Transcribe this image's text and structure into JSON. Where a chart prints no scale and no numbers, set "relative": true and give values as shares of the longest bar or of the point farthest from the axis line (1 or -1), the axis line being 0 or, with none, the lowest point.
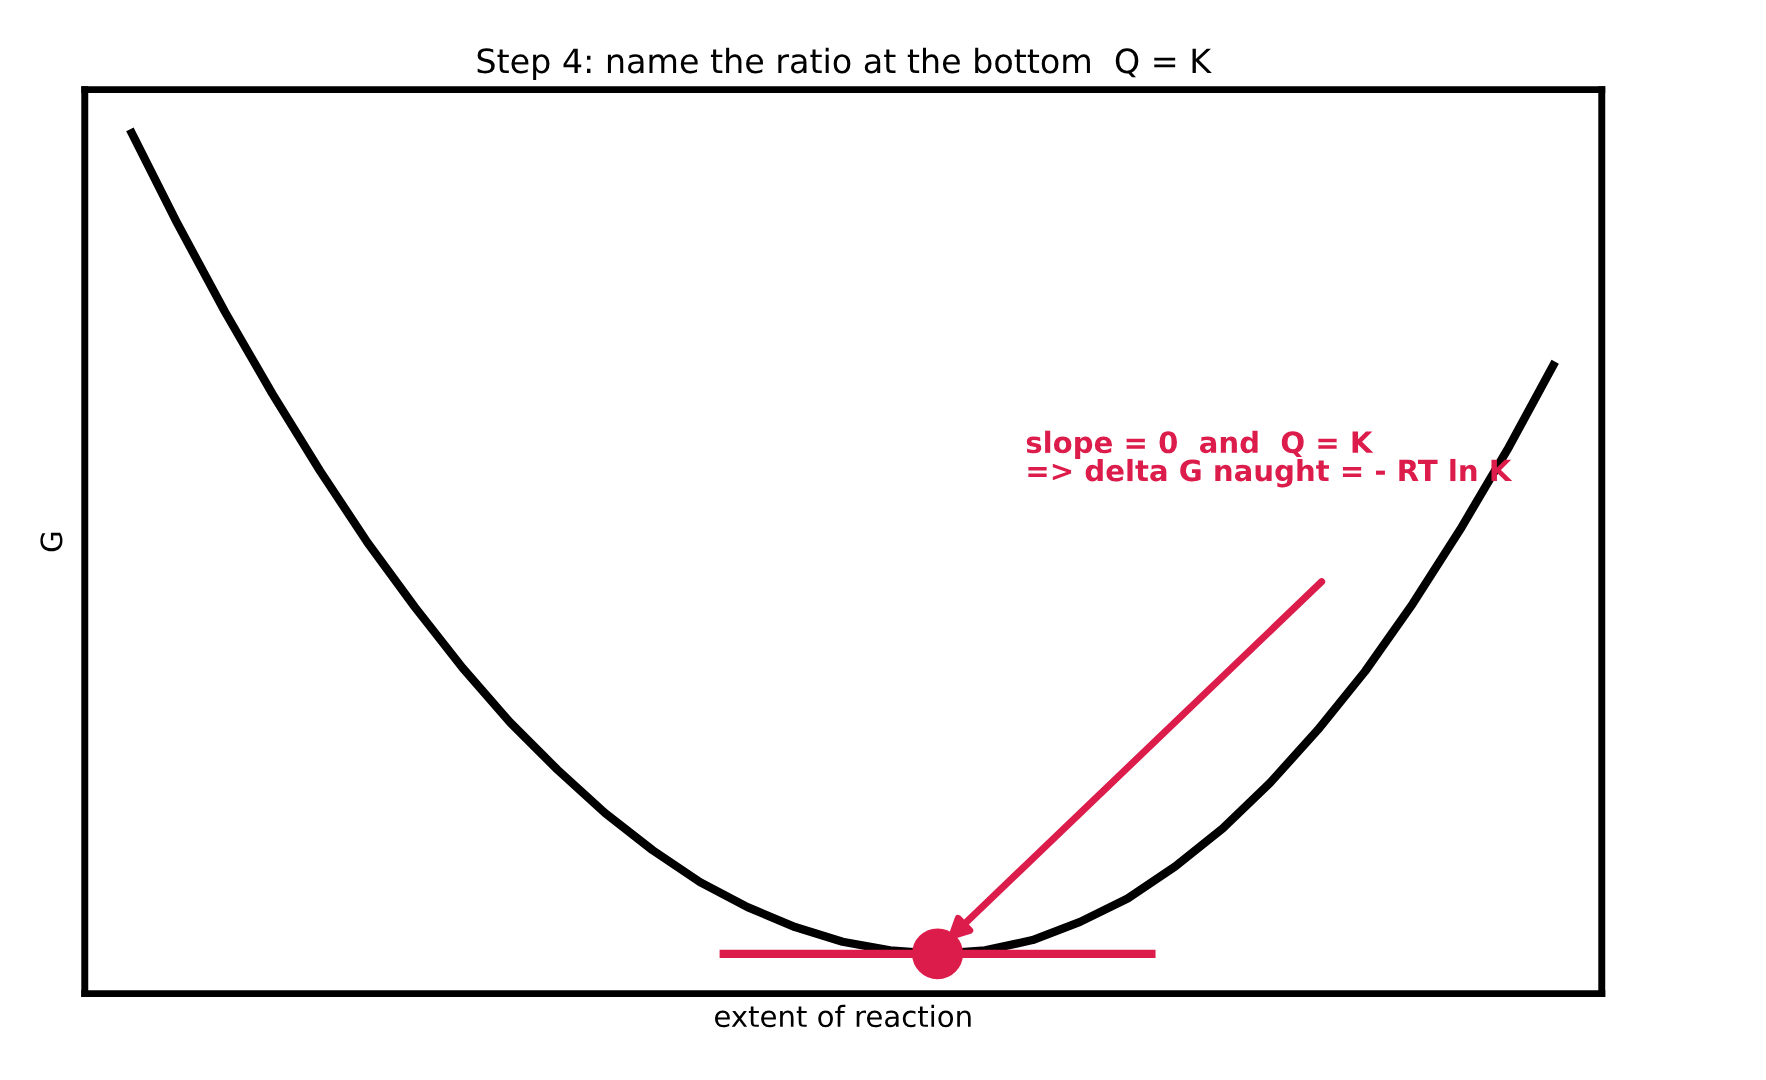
{
  "chart_data": {
    "type": "line",
    "relative": true,
    "title": "Step 4: name the ratio at the bottom  Q = K",
    "xlabel": "extent of reaction",
    "ylabel": "G",
    "categories": [
      null,
      null,
      null,
      null,
      null,
      null,
      null,
      null,
      null,
      null,
      null,
      null,
      null,
      null,
      null,
      null,
      null,
      null,
      null,
      null,
      null,
      null,
      null,
      null,
      null,
      null,
      null,
      null,
      null,
      null,
      null
    ],
    "series": [
      {
        "color": "#000000",
        "values": [
          1.0,
          0.891,
          0.789,
          0.694,
          0.605,
          0.522,
          0.447,
          0.377,
          0.314,
          0.259,
          0.209,
          0.166,
          0.129,
          0.1,
          0.077,
          0.06,
          0.05,
          0.046,
          0.05,
          0.062,
          0.083,
          0.11,
          0.147,
          0.191,
          0.244,
          0.305,
          0.373,
          0.451,
          0.537,
          0.63,
          0.731
        ]
      }
    ],
    "ref_lines": [
      {
        "axis": "y",
        "value": 0.046,
        "color": "#dc1c4b"
      }
    ],
    "annotations": [
      "slope = 0  and  Q = K\n=> delta G naught = - RT ln K"
    ],
    "legend": false
  }
}
